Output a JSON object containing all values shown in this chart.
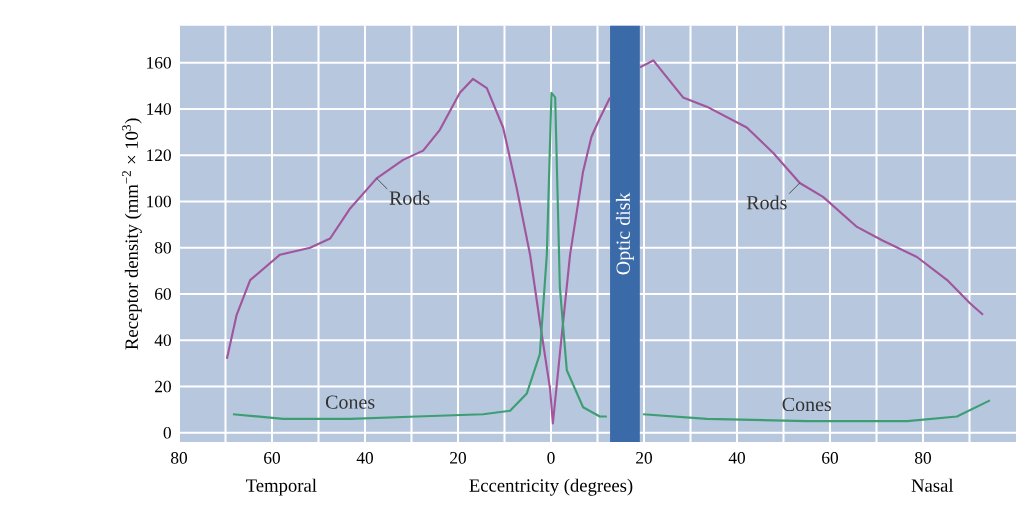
{
  "chart_data": {
    "type": "line",
    "xlabel": "Eccentricity (degrees)",
    "ylabel": "Receptor density (mm$^{−2}$ × 10$^{3}$)",
    "xlim": [
      -80,
      100
    ],
    "ylim": [
      -4,
      176
    ],
    "xticks": [
      {
        "value": -80,
        "label": "80"
      },
      {
        "value": -70,
        "label": null
      },
      {
        "value": -60,
        "label": "60"
      },
      {
        "value": -50,
        "label": null
      },
      {
        "value": -40,
        "label": "40"
      },
      {
        "value": -30,
        "label": null
      },
      {
        "value": -20,
        "label": "20"
      },
      {
        "value": -10,
        "label": null
      },
      0,
      {
        "value": 10,
        "label": null
      },
      20,
      {
        "value": 30,
        "label": null
      },
      40,
      {
        "value": 50,
        "label": null
      },
      60,
      {
        "value": 70,
        "label": null
      },
      80,
      {
        "value": 90,
        "label": null
      }
    ],
    "yticks": [
      0,
      20,
      40,
      60,
      80,
      100,
      120,
      140,
      160
    ],
    "grid": true,
    "series": [
      {
        "color": "#a0559d",
        "x": [
          -69.7,
          -67.6,
          -64.7,
          -58.3,
          -51.8,
          -47.5,
          -43.2,
          -37.5,
          -31.8,
          -27.5,
          -23.9,
          -19.6,
          -16.8,
          -13.8,
          -10.3,
          -7.4,
          -4.5,
          -2.4,
          -0.2,
          0.4,
          1.9,
          4.1,
          6.9,
          8.7,
          10.5,
          12.7,
          16,
          19.1,
          22,
          28.4,
          33.5,
          42.1,
          47.8,
          53.5,
          58.5,
          65.8,
          71.4,
          78.7,
          85.2,
          90.1,
          92.9
        ],
        "values": [
          32,
          51,
          66,
          77,
          80,
          84,
          97,
          110,
          118,
          122,
          131,
          147,
          153,
          149,
          132,
          106,
          77,
          48,
          19,
          4,
          34,
          77,
          113,
          128,
          136,
          145,
          null,
          158,
          161,
          145,
          141,
          132,
          121,
          108,
          102,
          89,
          83,
          76,
          66,
          56,
          51
        ]
      },
      {
        "color": "#3d9e73",
        "x": [
          -68.4,
          -57.6,
          -43.2,
          -28.8,
          -14.6,
          -8.8,
          -5.2,
          -2.4,
          -0.9,
          0.1,
          0.9,
          1.9,
          3.4,
          6.9,
          10.5,
          12,
          16,
          19.8,
          33.5,
          55,
          76.6,
          87.3,
          94.4
        ],
        "values": [
          8,
          6,
          6,
          7,
          8,
          9.5,
          17,
          34,
          77,
          147,
          145,
          63,
          27,
          11,
          7,
          7,
          null,
          8,
          6,
          5,
          5,
          7,
          14
        ]
      }
    ],
    "bands": [
      {
        "axis": "x",
        "from": 12.7,
        "to": 19.1,
        "label": "Optic disk",
        "color": "#3b6aa8"
      }
    ],
    "annotations": [
      {
        "text": "Rods",
        "x": -37.5,
        "y": 110
      },
      {
        "text": "Rods",
        "x": 53.5,
        "y": 108
      },
      {
        "text": "Cones",
        "x": -43.2,
        "y": 6
      },
      {
        "text": "Cones",
        "x": 55,
        "y": 5
      },
      "Temporal",
      "Nasal"
    ]
  }
}
